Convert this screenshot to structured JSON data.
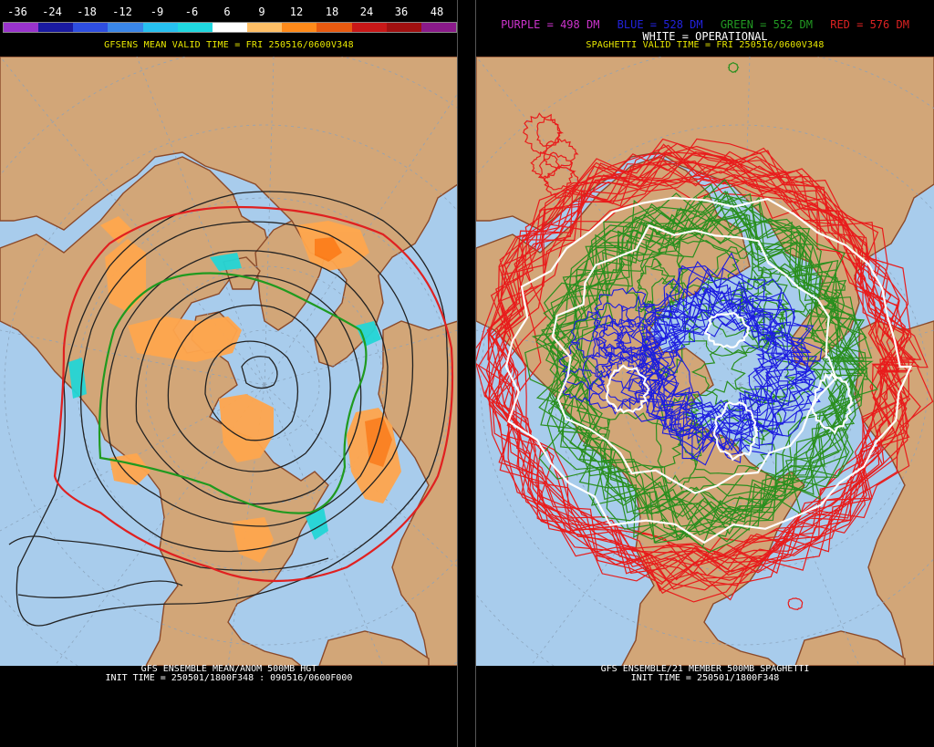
{
  "left": {
    "colorbar_labels": [
      "-36",
      "-24",
      "-18",
      "-12",
      "-9",
      "-6",
      "6",
      "9",
      "12",
      "18",
      "24",
      "36",
      "48"
    ],
    "colorbar_colors": [
      "#9933cc",
      "#1a1aa0",
      "#2e4ee0",
      "#3a86e8",
      "#27c0f0",
      "#20d8e0",
      "#ffffff",
      "#ffbf66",
      "#ff8a1a",
      "#e85a10",
      "#c81818",
      "#a01010",
      "#8a1a8a"
    ],
    "subtitle": "GFSENS MEAN VALID TIME = FRI 250516/0600V348",
    "bottom_line1": "GFS ENSEMBLE MEAN/ANOM 500MB HGT",
    "bottom_line2": "INIT TIME = 250501/1800F348 : 090516/0600F000"
  },
  "right": {
    "legend": [
      {
        "label": "PURPLE = 498 DM",
        "color": "#cc33cc"
      },
      {
        "label": "BLUE = 528 DM",
        "color": "#2222dd"
      },
      {
        "label": "GREEN = 552 DM",
        "color": "#229922"
      },
      {
        "label": "RED = 576 DM",
        "color": "#dd2222"
      }
    ],
    "operational": "WHITE = OPERATIONAL",
    "subtitle": "SPAGHETTI VALID TIME = FRI 250516/0600V348",
    "bottom_line1": "GFS ENSEMBLE/21 MEMBER 500MB SPAGHETTI",
    "bottom_line2": "INIT TIME = 250501/1800F348"
  },
  "colors": {
    "ocean": "#a8ccec",
    "land": "#d2a678",
    "coast": "#8b4a2a"
  }
}
